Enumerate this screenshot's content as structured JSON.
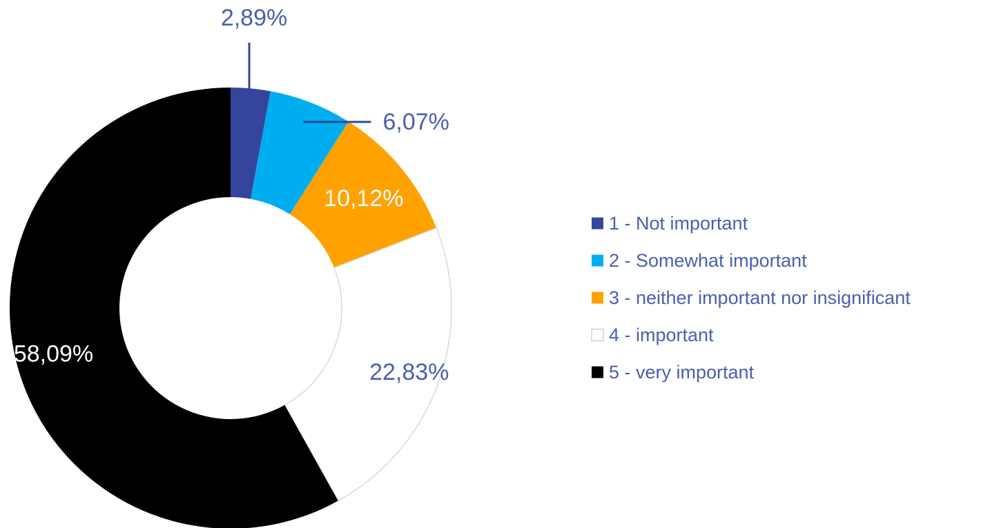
{
  "chart_data": {
    "type": "pie",
    "variant": "donut",
    "title": "",
    "categories": [
      "1 - Not important",
      "2 - Somewhat important",
      "3 - neither important nor insignificant",
      "4 - important",
      "5 - very important"
    ],
    "values": [
      2.89,
      6.07,
      10.12,
      22.83,
      58.09
    ],
    "data_labels": [
      "2,89%",
      "6,07%",
      "10,12%",
      "22,83%",
      "58,09%"
    ],
    "colors": [
      "#35449c",
      "#00aeef",
      "#ffa200",
      "#ffffff",
      "#000000"
    ],
    "label_colors": [
      "#4a5fb0",
      "#4a5fb0",
      "#ffffff",
      "#4a5fb0",
      "#ffffff"
    ],
    "slice_outline_color": "#d9d9d9",
    "leader_line_color": "#35449c",
    "legend": {
      "position": "right",
      "text_color": "#4a5fb0"
    }
  }
}
